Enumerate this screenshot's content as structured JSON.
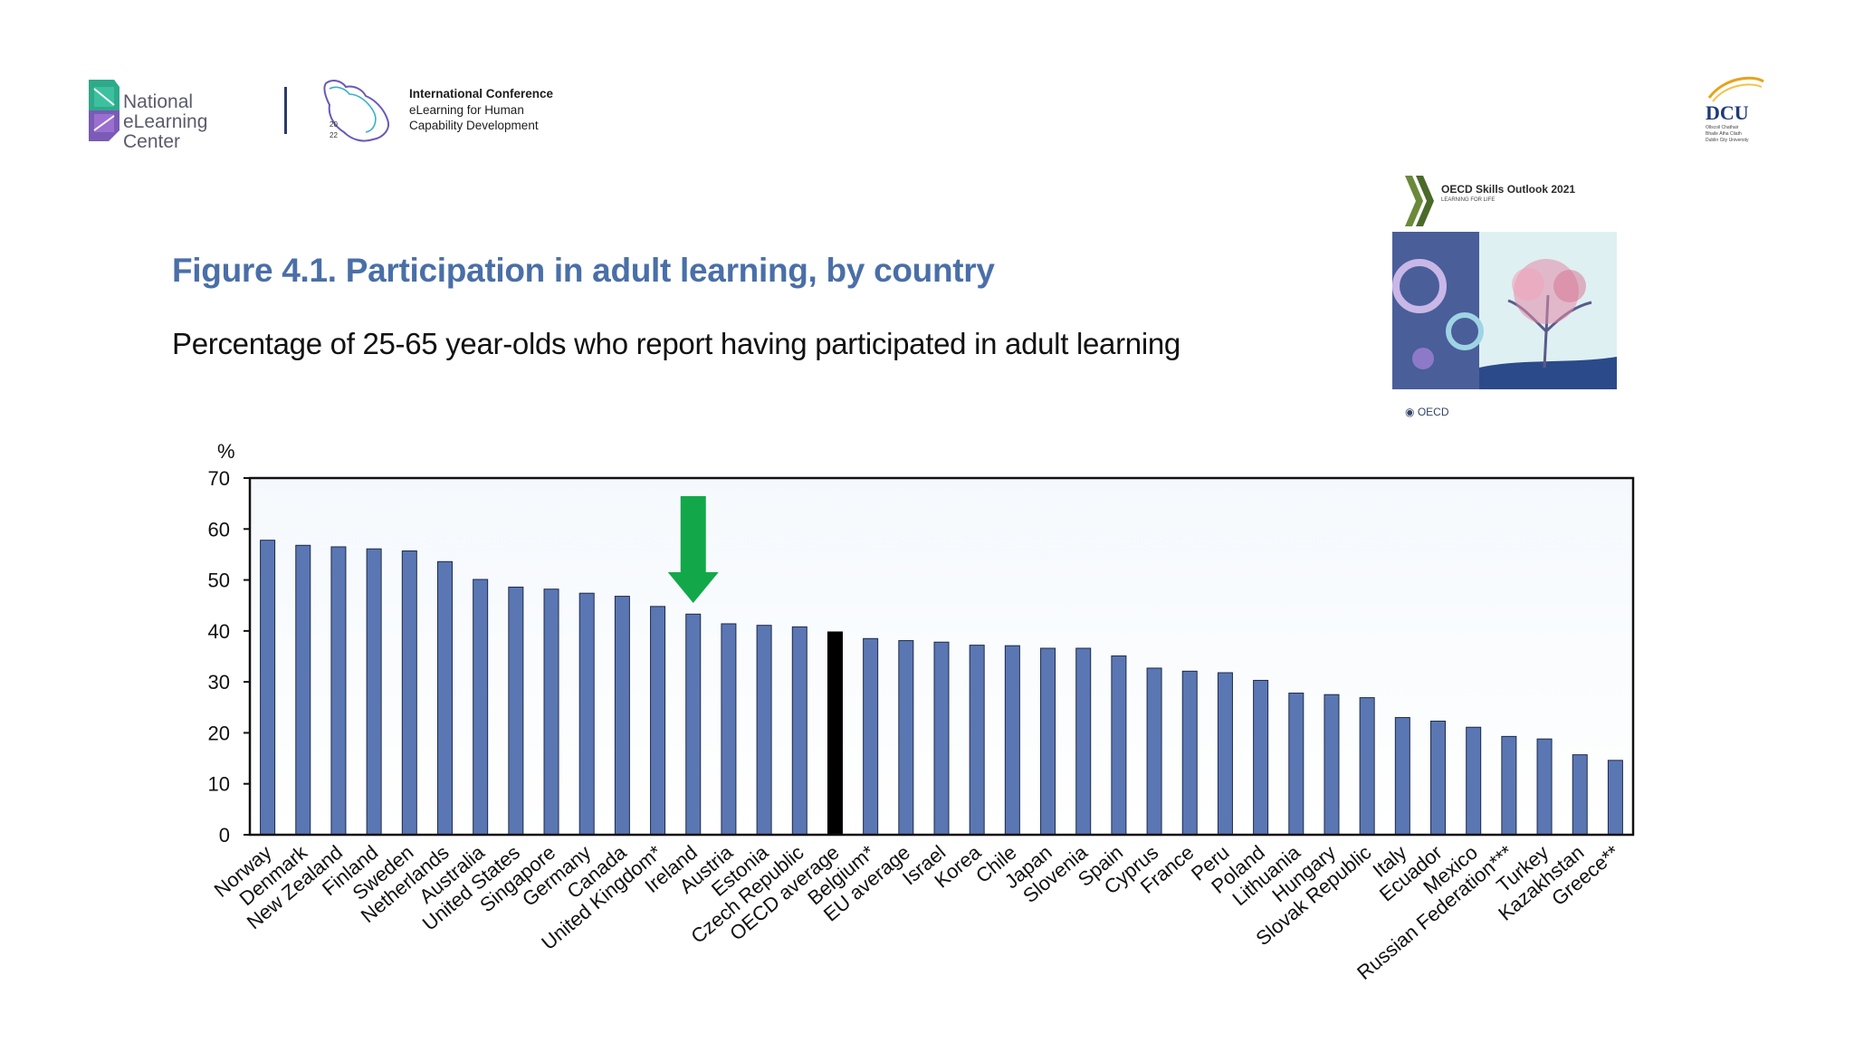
{
  "header": {
    "nelc_logo": {
      "line1": "National",
      "line2": "eLearning Center"
    },
    "conference": {
      "year_top": "20",
      "year_bottom": "22",
      "line1": "International Conference",
      "line2": "eLearning for Human",
      "line3": "Capability Development"
    },
    "dcu_logo": {
      "abbr": "DCU",
      "line1": "Ollscoil Chathair",
      "line2": "Bhaile Átha Cliath",
      "line3": "Dublin City University"
    }
  },
  "oecd_cover": {
    "title": "OECD Skills Outlook 2021",
    "subtitle": "LEARNING FOR LIFE",
    "publisher": "OECD"
  },
  "figure": {
    "title": "Figure 4.1. Participation in adult learning, by country",
    "subtitle": "Percentage of 25-65 year-olds who report having participated in adult learning"
  },
  "colors": {
    "bar": "#5a77b3",
    "highlight_bar": "#000000",
    "arrow": "#12a84a",
    "plot_bg_top": "#f5f9fd",
    "plot_bg_bottom": "#ffffff"
  },
  "chart_data": {
    "type": "bar",
    "ylabel": "%",
    "ylim": [
      0,
      70
    ],
    "yticks": [
      0,
      10,
      20,
      30,
      40,
      50,
      60,
      70
    ],
    "categories": [
      "Norway",
      "Denmark",
      "New Zealand",
      "Finland",
      "Sweden",
      "Netherlands",
      "Australia",
      "United States",
      "Singapore",
      "Germany",
      "Canada",
      "United Kingdom*",
      "Ireland",
      "Austria",
      "Estonia",
      "Czech Republic",
      "OECD average",
      "Belgium*",
      "EU average",
      "Israel",
      "Korea",
      "Chile",
      "Japan",
      "Slovenia",
      "Spain",
      "Cyprus",
      "France",
      "Peru",
      "Poland",
      "Lithuania",
      "Hungary",
      "Slovak Republic",
      "Italy",
      "Ecuador",
      "Mexico",
      "Russian Federation***",
      "Turkey",
      "Kazakhstan",
      "Greece**"
    ],
    "values": [
      57.8,
      56.8,
      56.5,
      56.1,
      55.7,
      53.6,
      50.1,
      48.6,
      48.2,
      47.4,
      46.8,
      44.8,
      43.3,
      41.4,
      41.1,
      40.8,
      39.8,
      38.5,
      38.1,
      37.8,
      37.2,
      37.1,
      36.6,
      36.6,
      35.1,
      32.7,
      32.1,
      31.8,
      30.3,
      27.8,
      27.5,
      26.9,
      23.0,
      22.3,
      21.1,
      19.3,
      18.8,
      15.7,
      14.6
    ],
    "highlight": "OECD average",
    "annotation": {
      "type": "arrow",
      "target": "Ireland"
    }
  }
}
